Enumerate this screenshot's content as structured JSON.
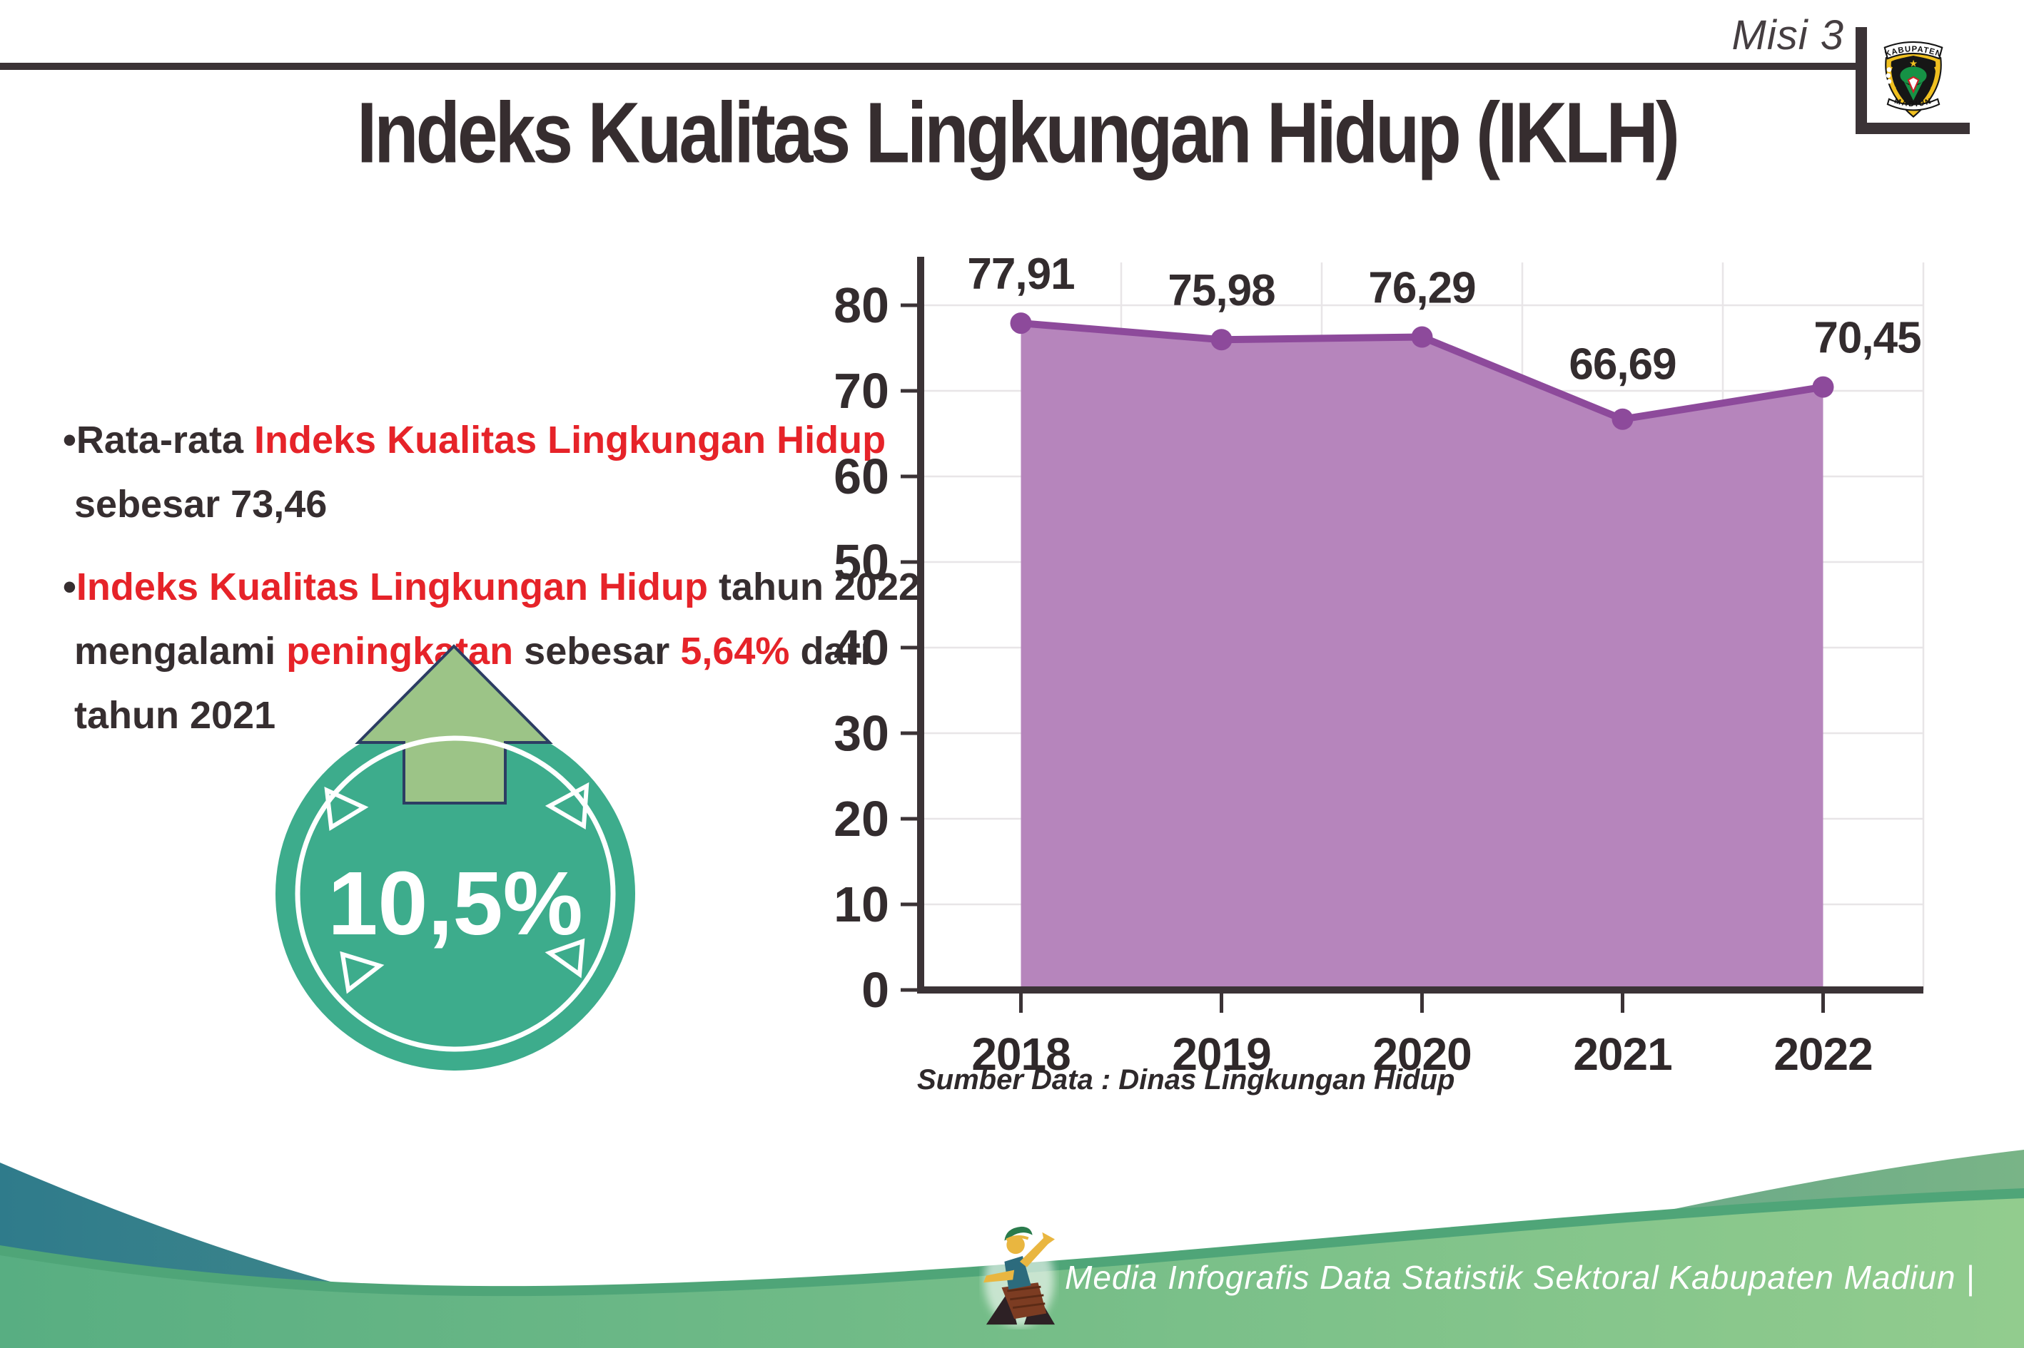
{
  "header": {
    "misi": "Misi 3",
    "logo_top": "KABUPATEN",
    "logo_bottom": "MADIUN"
  },
  "title": "Indeks Kualitas Lingkungan Hidup (IKLH)",
  "bullets": {
    "b1_l1_dark": "•Rata-rata ",
    "b1_l1_red": "Indeks Kualitas Lingkungan Hidup",
    "b1_l2": "sebesar 73,46",
    "b2_l1_bullet": "•",
    "b2_l1_red": "Indeks Kualitas Lingkungan Hidup",
    "b2_l1_dark": " tahun 2022",
    "b2_l2_d1": "mengalami ",
    "b2_l2_red1": "peningkatan",
    "b2_l2_d2": " sebesar ",
    "b2_l2_red2": "5,64%",
    "b2_l2_d3": " dari",
    "b2_l3": "tahun 2021"
  },
  "badge": {
    "value": "10,5%",
    "circle_color": "#3dac8c",
    "arrow_color": "#9cc487"
  },
  "chart_data": {
    "type": "area",
    "categories": [
      "2018",
      "2019",
      "2020",
      "2021",
      "2022"
    ],
    "values": [
      77.91,
      75.98,
      76.29,
      66.69,
      70.45
    ],
    "value_labels": [
      "77,91",
      "75,98",
      "76,29",
      "66,69",
      "70,45"
    ],
    "title": "",
    "xlabel": "",
    "ylabel": "",
    "ylim": [
      0,
      80
    ],
    "ytick_step": 10,
    "yticks": [
      0,
      10,
      20,
      30,
      40,
      50,
      60,
      70,
      80
    ],
    "grid": true,
    "legend": false,
    "source": "Sumber Data : Dinas Lingkungan Hidup",
    "line_color": "#8d4a9b",
    "fill_color": "#b685bc",
    "axis_color": "#3b3336",
    "grid_color": "#e8e5e7"
  },
  "footer": {
    "credit": "Media Infografis Data Statistik Sektoral Kabupaten Madiun |"
  }
}
